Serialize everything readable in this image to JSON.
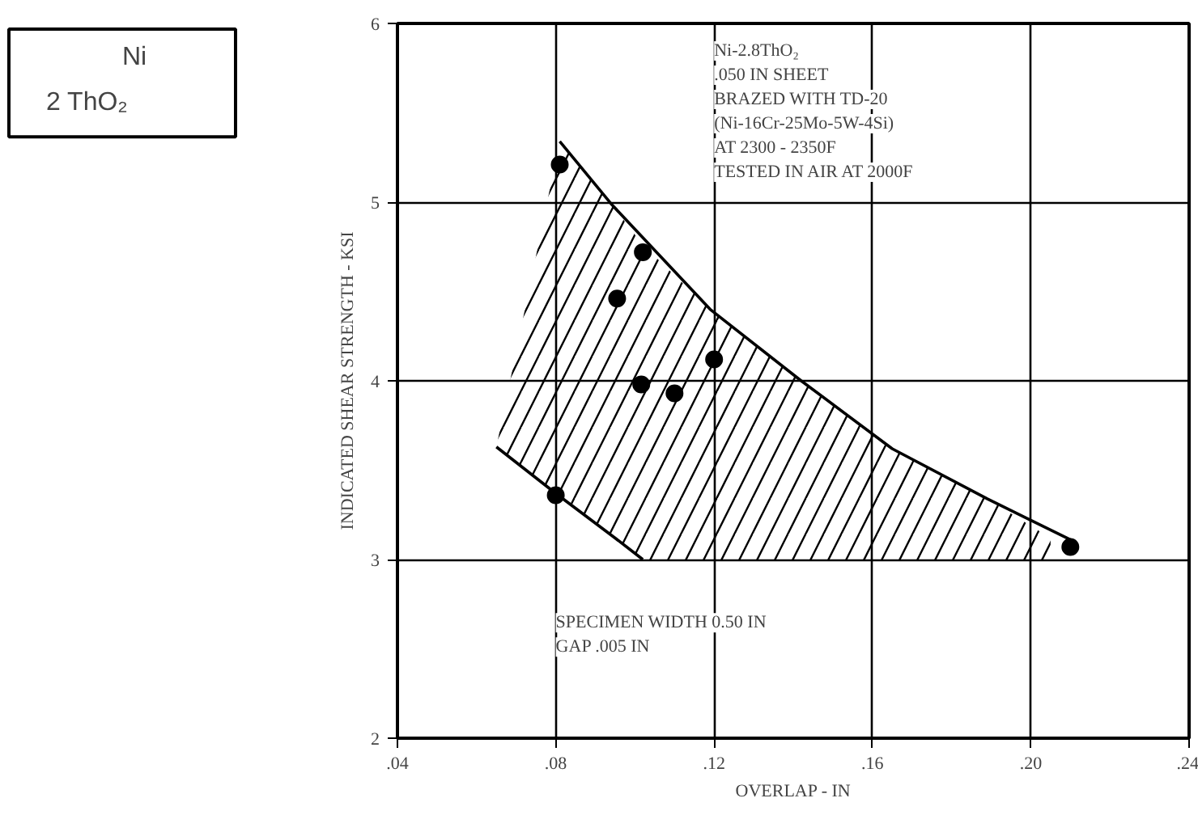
{
  "chart_data": {
    "type": "scatter",
    "xlabel": "OVERLAP - IN",
    "ylabel": "INDICATED SHEAR STRENGTH - KSI",
    "xlim": [
      0.04,
      0.24
    ],
    "ylim": [
      2,
      6
    ],
    "xticks": [
      {
        "value": 0.04,
        "label": ".04"
      },
      {
        "value": 0.08,
        "label": ".08"
      },
      {
        "value": 0.12,
        "label": ".12"
      },
      {
        "value": 0.16,
        "label": ".16"
      },
      {
        "value": 0.2,
        "label": ".20"
      },
      {
        "value": 0.24,
        "label": ".24"
      }
    ],
    "yticks": [
      2,
      3,
      4,
      5,
      6
    ],
    "grid": true,
    "series": [
      {
        "marker": "circle",
        "color": "#000000",
        "x": [
          0.081,
          0.102,
          0.0955,
          0.1016,
          0.11,
          0.12,
          0.08,
          0.21
        ],
        "values": [
          5.21,
          4.72,
          4.46,
          3.98,
          3.93,
          4.12,
          3.36,
          3.07
        ]
      },
      {
        "type": "area",
        "color": "#000000",
        "x": [
          0.065,
          0.081,
          0.094,
          0.102,
          0.119,
          0.142,
          0.165,
          0.189,
          0.205
        ],
        "values": [
          3.63,
          5.34,
          4.99,
          4.76,
          4.4,
          4.0,
          3.62,
          3.34,
          3.12
        ]
      },
      {
        "type": "line",
        "line_style": "solid",
        "color": "#000000",
        "x": [
          0.081,
          0.094,
          0.119,
          0.142,
          0.165,
          0.189,
          0.211
        ],
        "values": [
          5.34,
          4.99,
          4.4,
          4.0,
          3.62,
          3.34,
          3.1
        ]
      },
      {
        "type": "line",
        "line_style": "solid",
        "color": "#000000",
        "x": [
          0.065,
          0.08,
          0.095,
          0.102
        ],
        "values": [
          3.63,
          3.37,
          3.12,
          3.0
        ]
      }
    ],
    "annotations": [
      "Ni-2.8ThO₂\n.050 IN SHEET\nBRAZED WITH TD-20\n(Ni-16Cr-25Mo-5W-4Si)\nAT 2300 - 2350F\nTESTED IN AIR AT 2000F",
      "SPECIMEN WIDTH 0.50 IN\nGAP .005 IN",
      "Ni",
      "2  ThO₂"
    ]
  }
}
